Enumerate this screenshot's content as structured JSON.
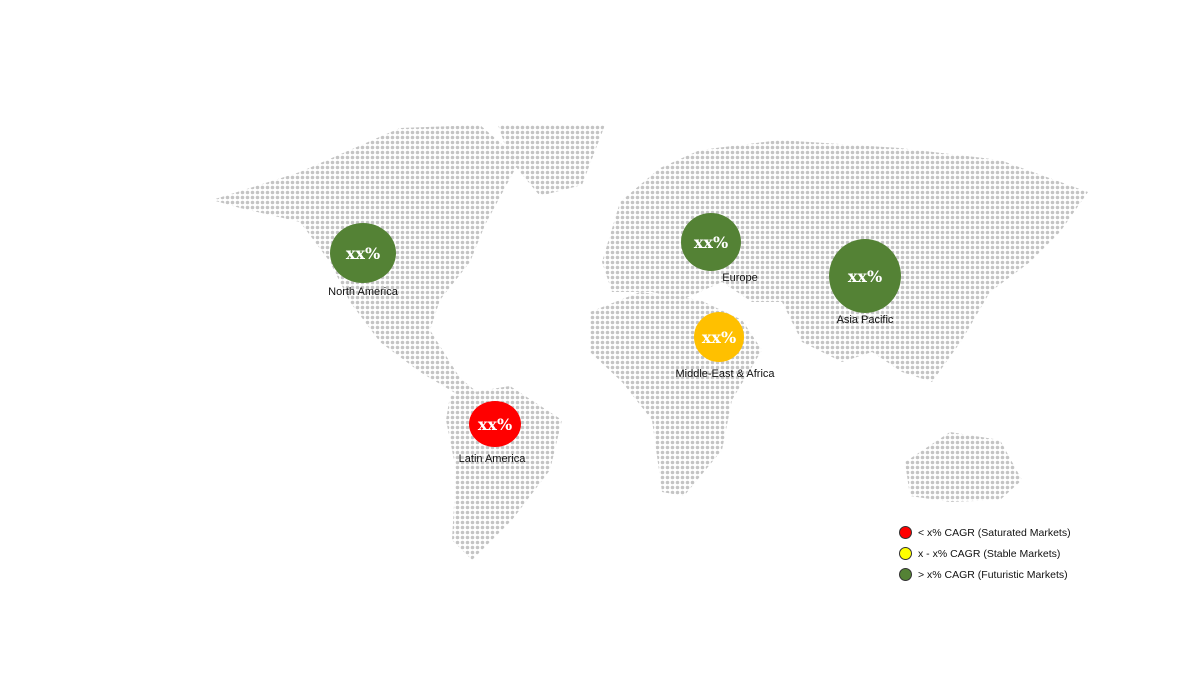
{
  "colors": {
    "saturated": "#ff0000",
    "stable": "#ffc000",
    "futuristic": "#548235",
    "legend_stable": "#ffff00",
    "map_dots": "#c4c4c4"
  },
  "regions": [
    {
      "name": "North America",
      "value": "xx%",
      "category": "futuristic"
    },
    {
      "name": "Europe",
      "value": "xx%",
      "category": "futuristic"
    },
    {
      "name": "Asia Pacific",
      "value": "xx%",
      "category": "futuristic"
    },
    {
      "name": "Middle-East & Africa",
      "value": "xx%",
      "category": "stable"
    },
    {
      "name": "Latin America",
      "value": "xx%",
      "category": "saturated"
    }
  ],
  "legend": [
    {
      "label": "< x% CAGR (Saturated Markets)",
      "category": "saturated"
    },
    {
      "label": "x - x% CAGR (Stable Markets)",
      "category": "stable"
    },
    {
      "label": "> x% CAGR (Futuristic Markets)",
      "category": "futuristic"
    }
  ]
}
